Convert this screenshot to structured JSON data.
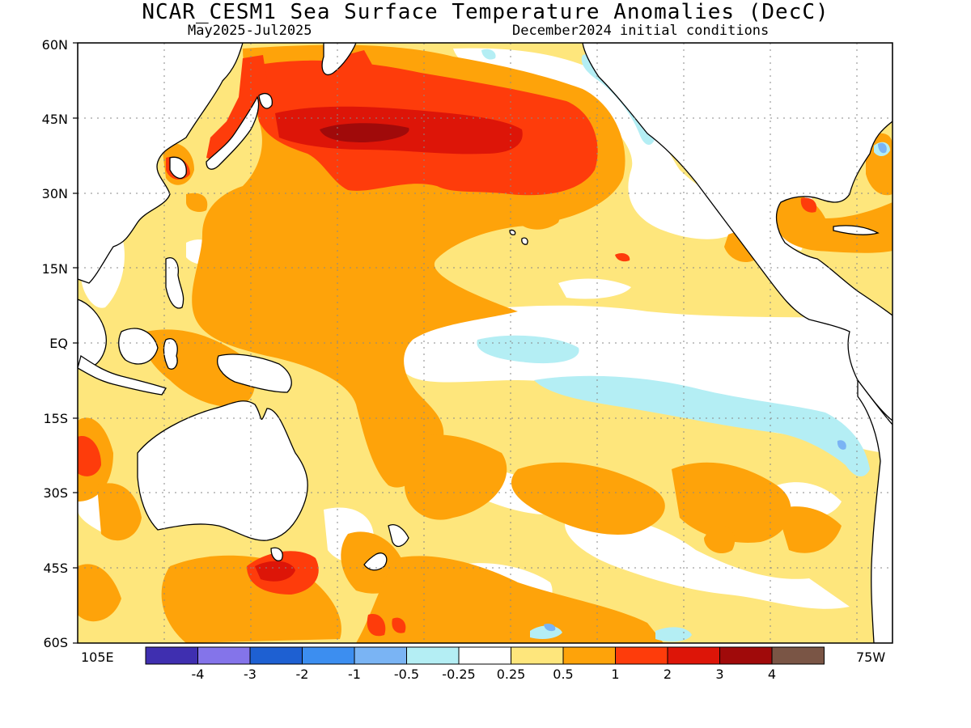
{
  "title": "NCAR_CESM1 Sea Surface Temperature Anomalies (DecC)",
  "subtitle_left": "May2025-Jul2025",
  "subtitle_right": "December2024 initial conditions",
  "lat_labels": [
    "60N",
    "45N",
    "30N",
    "15N",
    "EQ",
    "15S",
    "30S",
    "45S",
    "60S"
  ],
  "lon_labels": {
    "left": "105E",
    "right": "75W"
  },
  "colorbar": {
    "colors": [
      "#3f2fb0",
      "#8474ea",
      "#1e60d2",
      "#3c8ef0",
      "#7ab4f4",
      "#b4eef4",
      "#ffffff",
      "#fee67c",
      "#fea30a",
      "#fe3c0b",
      "#dd1508",
      "#a00a0a",
      "#7a5545"
    ],
    "labels": [
      "-4",
      "-3",
      "-2",
      "-1",
      "-0.5",
      "-0.25",
      "0.25",
      "0.5",
      "1",
      "2",
      "3",
      "4"
    ]
  }
}
